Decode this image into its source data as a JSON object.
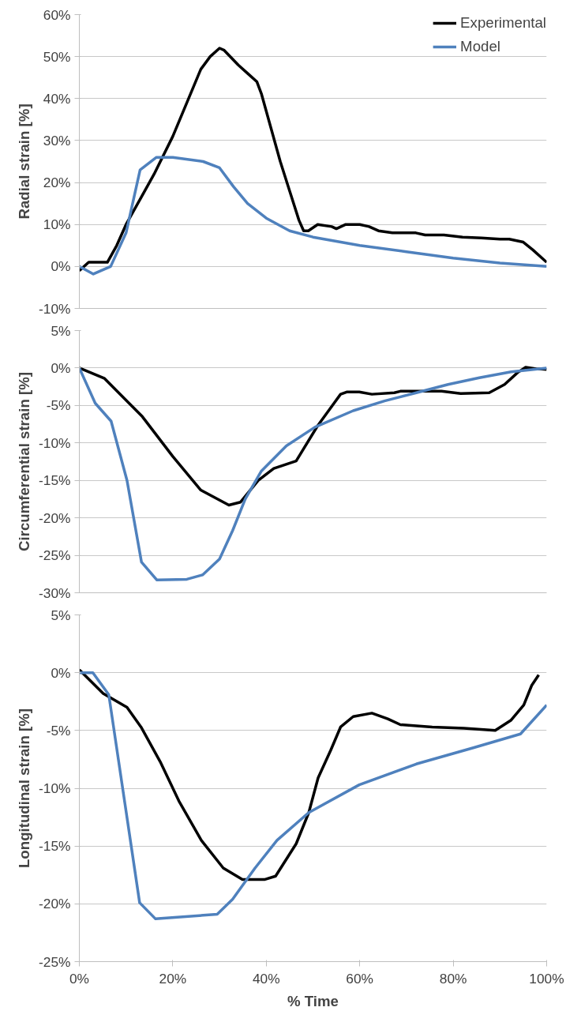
{
  "chart_data": [
    {
      "type": "line",
      "ylabel": "Radial strain [%]",
      "xlim": [
        0,
        100
      ],
      "ylim": [
        -10,
        60
      ],
      "yticks": [
        {
          "value": -10,
          "label": "-10%"
        },
        {
          "value": 0,
          "label": "0%"
        },
        {
          "value": 10,
          "label": "10%"
        },
        {
          "value": 20,
          "label": "20%"
        },
        {
          "value": 30,
          "label": "30%"
        },
        {
          "value": 40,
          "label": "40%"
        },
        {
          "value": 50,
          "label": "50%"
        },
        {
          "value": 60,
          "label": "60%"
        }
      ],
      "tick_labels": "y",
      "grid": "y",
      "legend": "top right",
      "line_style": "solid",
      "series": [
        {
          "name": "Experimental",
          "color": "#000000",
          "x": [
            0,
            2,
            4,
            6,
            8,
            10,
            13,
            16,
            20,
            23,
            26,
            28,
            30,
            31,
            34,
            36,
            38,
            39,
            41,
            43,
            45,
            47,
            48,
            49,
            51,
            54,
            55,
            57,
            60,
            62,
            64,
            67,
            70,
            72,
            74,
            78,
            82,
            86,
            90,
            92,
            95,
            97,
            100
          ],
          "values": [
            -1,
            1,
            1,
            1,
            5,
            10,
            16,
            22,
            31,
            39,
            47,
            50,
            52,
            51.5,
            48,
            46,
            44,
            41,
            33,
            25,
            18,
            11,
            8.5,
            8.5,
            10,
            9.5,
            9,
            10,
            10,
            9.5,
            8.5,
            8,
            8,
            8,
            7.5,
            7.5,
            7,
            6.8,
            6.5,
            6.5,
            5.8,
            4,
            1
          ]
        },
        {
          "name": "Model",
          "color": "#4f81bd",
          "x": [
            0,
            3,
            6.7,
            10,
            13,
            16.5,
            20,
            26.5,
            30,
            33,
            36,
            40,
            45,
            50,
            60,
            70,
            80,
            90,
            100
          ],
          "values": [
            0,
            -1.8,
            0,
            8,
            23,
            26,
            26,
            25,
            23.5,
            19,
            15,
            11.5,
            8.5,
            7,
            5,
            3.5,
            2,
            0.8,
            0
          ]
        }
      ]
    },
    {
      "type": "line",
      "ylabel": "Circumferential strain [%]",
      "xlim": [
        0,
        100
      ],
      "ylim": [
        -30,
        5
      ],
      "yticks": [
        {
          "value": -30,
          "label": "-30%"
        },
        {
          "value": -25,
          "label": "-25%"
        },
        {
          "value": -20,
          "label": "-20%"
        },
        {
          "value": -15,
          "label": "-15%"
        },
        {
          "value": -10,
          "label": "-10%"
        },
        {
          "value": -5,
          "label": "-5%"
        },
        {
          "value": 0,
          "label": "0%"
        },
        {
          "value": 5,
          "label": "5%"
        }
      ],
      "tick_labels": "y",
      "grid": "y",
      "line_style": "solid",
      "series": [
        {
          "color": "#000000",
          "x": [
            0,
            5.4,
            13.5,
            20,
            26,
            32,
            34.5,
            38.3,
            41.6,
            46.4,
            51,
            55.9,
            57.2,
            59.9,
            62.6,
            67.4,
            68.7,
            77.5,
            81.6,
            87.7,
            91,
            93.8,
            95.5,
            97.8,
            100
          ],
          "values": [
            0,
            -1.4,
            -6.5,
            -11.8,
            -16.3,
            -18.3,
            -17.9,
            -15,
            -13.4,
            -12.4,
            -7.7,
            -3.5,
            -3.2,
            -3.2,
            -3.5,
            -3.3,
            -3.1,
            -3.1,
            -3.4,
            -3.3,
            -2.2,
            -0.6,
            0.1,
            -0.1,
            -0.2
          ]
        },
        {
          "color": "#4f81bd",
          "x": [
            0,
            3.4,
            6.8,
            10.2,
            13.3,
            16.6,
            23,
            26.4,
            30,
            32.8,
            35.5,
            38.9,
            44.3,
            50.4,
            58.6,
            65.3,
            72.1,
            78.9,
            85.6,
            92.4,
            100
          ],
          "values": [
            0,
            -4.7,
            -7.1,
            -15,
            -25.9,
            -28.3,
            -28.2,
            -27.6,
            -25.5,
            -21.7,
            -17.5,
            -13.8,
            -10.4,
            -7.9,
            -5.7,
            -4.4,
            -3.3,
            -2.2,
            -1.3,
            -0.5,
            0
          ]
        }
      ]
    },
    {
      "type": "line",
      "ylabel": "Longitudinal strain [%]",
      "xlabel": "% Time",
      "xlim": [
        0,
        100
      ],
      "ylim": [
        -25,
        5
      ],
      "xticks": [
        {
          "value": 0,
          "label": "0%"
        },
        {
          "value": 20,
          "label": "20%"
        },
        {
          "value": 40,
          "label": "40%"
        },
        {
          "value": 60,
          "label": "60%"
        },
        {
          "value": 80,
          "label": "80%"
        },
        {
          "value": 100,
          "label": "100%"
        }
      ],
      "yticks": [
        {
          "value": -25,
          "label": "-25%"
        },
        {
          "value": -20,
          "label": "-20%"
        },
        {
          "value": -15,
          "label": "-15%"
        },
        {
          "value": -10,
          "label": "-10%"
        },
        {
          "value": -5,
          "label": "-5%"
        },
        {
          "value": 0,
          "label": "0%"
        },
        {
          "value": 5,
          "label": "5%"
        }
      ],
      "grid": "y",
      "line_style": "solid",
      "series": [
        {
          "color": "#000000",
          "x": [
            0,
            5.1,
            10.2,
            13.2,
            17.3,
            21.3,
            26.1,
            30.8,
            34.9,
            39.6,
            42,
            46.4,
            49.1,
            51.1,
            53.8,
            55.9,
            58.6,
            62.6,
            66,
            68.7,
            75.5,
            82.3,
            89,
            92.4,
            95.1,
            96.8,
            98.3
          ],
          "values": [
            0.25,
            -1.8,
            -3,
            -4.7,
            -7.7,
            -11.1,
            -14.5,
            -16.9,
            -17.9,
            -17.9,
            -17.6,
            -14.8,
            -12.1,
            -9.1,
            -6.7,
            -4.7,
            -3.8,
            -3.5,
            -4,
            -4.5,
            -4.7,
            -4.8,
            -5,
            -4.1,
            -2.8,
            -1.1,
            -0.2
          ]
        },
        {
          "color": "#4f81bd",
          "x": [
            0,
            2.9,
            6.3,
            12.9,
            16.3,
            29.5,
            32.8,
            37.6,
            42.3,
            49.1,
            59.9,
            72.1,
            84.3,
            94.4,
            100
          ],
          "values": [
            0,
            0,
            -1.9,
            -19.9,
            -21.3,
            -20.9,
            -19.6,
            -16.9,
            -14.5,
            -12.1,
            -9.7,
            -7.9,
            -6.5,
            -5.3,
            -2.8
          ]
        }
      ]
    }
  ]
}
